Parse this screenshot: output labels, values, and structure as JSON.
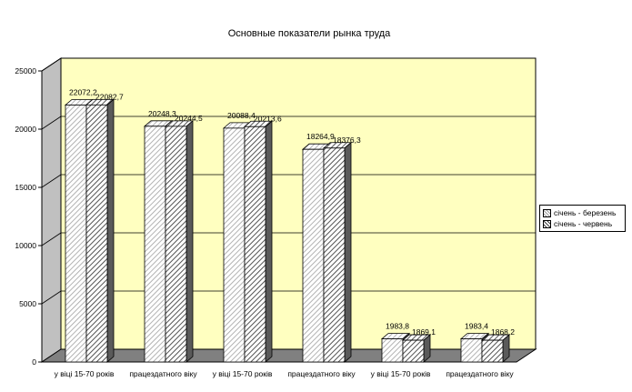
{
  "chart_data": {
    "type": "bar",
    "title": "Основные показатели рынка труда",
    "categories": [
      "у віці 15-70 років",
      "працездатного віку",
      "у віці 15-70 років",
      "працездатного віку",
      "у віці 15-70 років",
      "працездатного віку"
    ],
    "series": [
      {
        "name": "січень - березень",
        "values": [
          22072.2,
          20248.3,
          20088.4,
          18264.9,
          1983.8,
          1983.4
        ],
        "labels": [
          "22072,2",
          "20248,3",
          "20088,4",
          "18264,9",
          "1983,8",
          "1983,4"
        ]
      },
      {
        "name": "січень - червень",
        "values": [
          22082.7,
          20244.5,
          20213.6,
          18376.3,
          1869.1,
          1868.2
        ],
        "labels": [
          "22082,7",
          "20244,5",
          "20213,6",
          "18376,3",
          "1869,1",
          "1868,2"
        ]
      }
    ],
    "ylim": [
      0,
      25000
    ],
    "yticks": [
      0,
      5000,
      10000,
      15000,
      20000,
      25000
    ],
    "ytick_labels": [
      "0",
      "5000",
      "10000",
      "15000",
      "20000",
      "25000"
    ],
    "grid": true,
    "legend_position": "right",
    "colors": {
      "wall": "#ffffc0",
      "floor": "#808080",
      "bar_face": "#ffffff",
      "hatch1": "#a0a0a0",
      "hatch2": "#404040"
    }
  }
}
